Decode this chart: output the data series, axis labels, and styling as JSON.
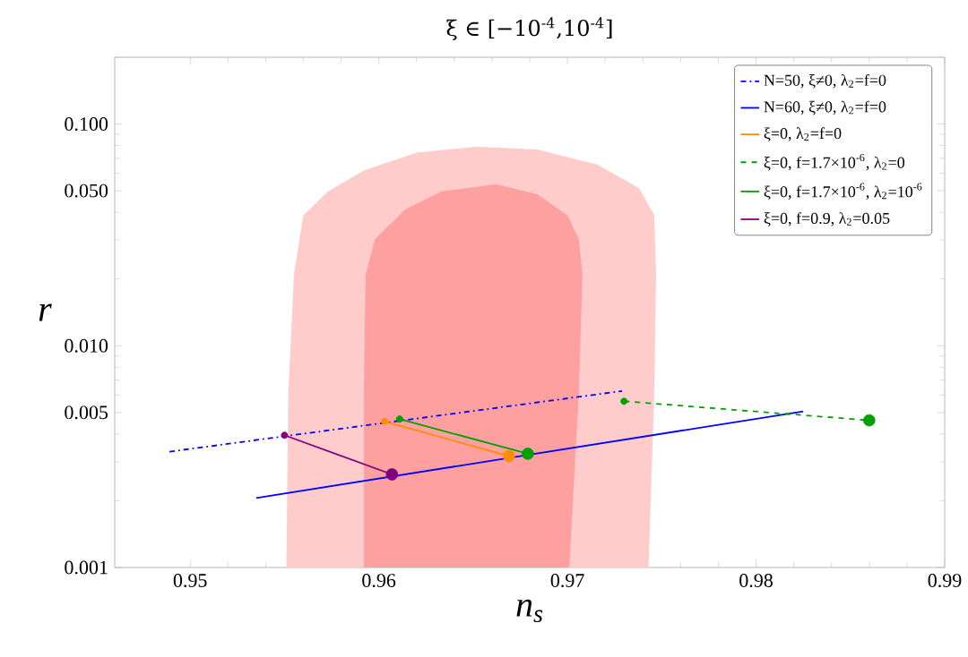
{
  "chart_data": {
    "type": "line",
    "title": "ξ ∈ [−10$^{-4}$,10$^{-4}$]",
    "xlabel": "n$_{s}$",
    "ylabel": "r",
    "xlim": [
      0.946,
      0.99
    ],
    "ylim": [
      0.001,
      0.2
    ],
    "log": "y",
    "legend": "top right",
    "xticks": [
      0.95,
      0.96,
      0.97,
      0.98,
      0.99
    ],
    "yticks": [
      {
        "value": 0.001,
        "label": "0.001"
      },
      {
        "value": 0.005,
        "label": "0.005"
      },
      {
        "value": 0.01,
        "label": "0.010"
      },
      {
        "value": 0.05,
        "label": "0.050"
      },
      {
        "value": 0.1,
        "label": "0.100"
      }
    ],
    "series": [
      {
        "type": "area",
        "color": "#ffcccc",
        "x": [
          0.9551,
          0.9552,
          0.9555,
          0.956,
          0.9573,
          0.9592,
          0.962,
          0.9652,
          0.9684,
          0.9716,
          0.9738,
          0.9746,
          0.9747,
          0.9746,
          0.9743
        ],
        "values": [
          0.001,
          0.00606,
          0.021,
          0.0388,
          0.0496,
          0.0617,
          0.0743,
          0.079,
          0.0767,
          0.0656,
          0.0513,
          0.0388,
          0.021,
          0.00606,
          0.001
        ]
      },
      {
        "type": "area",
        "color": "#ffa0a0",
        "x": [
          0.9592,
          0.9592,
          0.9593,
          0.9598,
          0.9614,
          0.9633,
          0.9662,
          0.9684,
          0.97,
          0.9706,
          0.9708,
          0.9706,
          0.9701
        ],
        "values": [
          0.001,
          0.00606,
          0.021,
          0.0303,
          0.0412,
          0.0496,
          0.0535,
          0.0482,
          0.0388,
          0.0303,
          0.021,
          0.00606,
          0.001
        ]
      },
      {
        "name": "N=50, ξ≠0, λ$_{2}$=f=0",
        "color": "#0000ff",
        "line_style": "dashdot",
        "marker": "none",
        "x": [
          0.9489,
          0.9729
        ],
        "values": [
          0.00333,
          0.00625
        ]
      },
      {
        "name": "N=60, ξ≠0, λ$_{2}$=f=0",
        "color": "#0000ff",
        "line_style": "solid",
        "marker": "none",
        "x": [
          0.9535,
          0.9825
        ],
        "values": [
          0.00206,
          0.00506
        ]
      },
      {
        "name": "ξ=0, λ$_{2}$=f=0",
        "color": "#ff8c00",
        "line_style": "solid",
        "marker": "circle",
        "x": [
          0.9603,
          0.9669
        ],
        "values": [
          0.00456,
          0.00318
        ]
      },
      {
        "name": "ξ=0, f=1.7×10$^{-6}$, λ$_{2}$=0",
        "color": "#00a000",
        "line_style": "dashed",
        "marker": "circle",
        "x": [
          0.973,
          0.986
        ],
        "values": [
          0.00562,
          0.00461
        ]
      },
      {
        "name": "ξ=0, f=1.7×10$^{-6}$, λ$_{2}$=10$^{-6}$",
        "color": "#00a000",
        "line_style": "solid",
        "marker": "circle",
        "x": [
          0.9611,
          0.9679
        ],
        "values": [
          0.00467,
          0.00326
        ]
      },
      {
        "name": "ξ=0, f=0.9, λ$_{2}$=0.05",
        "color": "#800080",
        "line_style": "solid",
        "marker": "circle",
        "x": [
          0.955,
          0.9607
        ],
        "values": [
          0.00395,
          0.00263
        ]
      }
    ]
  }
}
